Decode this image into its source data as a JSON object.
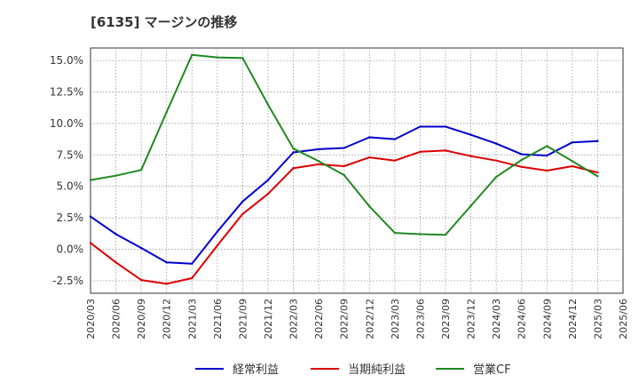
{
  "chart_data": {
    "type": "line",
    "title": "[6135]  マージンの推移",
    "xlabel": "",
    "ylabel": "",
    "ylim": [
      -3.5,
      16.0
    ],
    "grid": true,
    "legend_position": "bottom",
    "yticks": [
      15.0,
      12.5,
      10.0,
      7.5,
      5.0,
      2.5,
      0.0,
      -2.5
    ],
    "ytick_labels": [
      "15.0%",
      "12.5%",
      "10.0%",
      "7.5%",
      "5.0%",
      "2.5%",
      "0.0%",
      "-2.5%"
    ],
    "x": [
      "2020/03",
      "2020/06",
      "2020/09",
      "2020/12",
      "2021/03",
      "2021/06",
      "2021/09",
      "2021/12",
      "2022/03",
      "2022/06",
      "2022/09",
      "2022/12",
      "2023/03",
      "2023/06",
      "2023/09",
      "2023/12",
      "2024/03",
      "2024/06",
      "2024/09",
      "2024/12",
      "2025/03",
      "2025/06"
    ],
    "series": [
      {
        "name": "経常利益",
        "color": "#0000cc",
        "values": [
          2.6,
          1.2,
          0.1,
          -1.05,
          -1.15,
          1.4,
          3.8,
          5.5,
          7.7,
          7.95,
          8.05,
          8.9,
          8.75,
          9.75,
          9.75,
          9.1,
          8.4,
          7.55,
          7.45,
          8.5,
          8.6,
          null
        ]
      },
      {
        "name": "当期純利益",
        "color": "#dd0000",
        "values": [
          0.5,
          -1.05,
          -2.45,
          -2.75,
          -2.3,
          0.3,
          2.8,
          4.4,
          6.45,
          6.75,
          6.6,
          7.3,
          7.05,
          7.75,
          7.85,
          7.4,
          7.05,
          6.55,
          6.25,
          6.6,
          6.1,
          null
        ]
      },
      {
        "name": "営業CF",
        "color": "#228822",
        "values": [
          5.5,
          5.85,
          6.3,
          10.9,
          15.45,
          15.25,
          15.2,
          11.5,
          8.0,
          7.0,
          5.9,
          3.4,
          1.3,
          1.2,
          1.15,
          3.45,
          5.75,
          7.1,
          8.2,
          7.0,
          5.8,
          null
        ]
      }
    ]
  }
}
